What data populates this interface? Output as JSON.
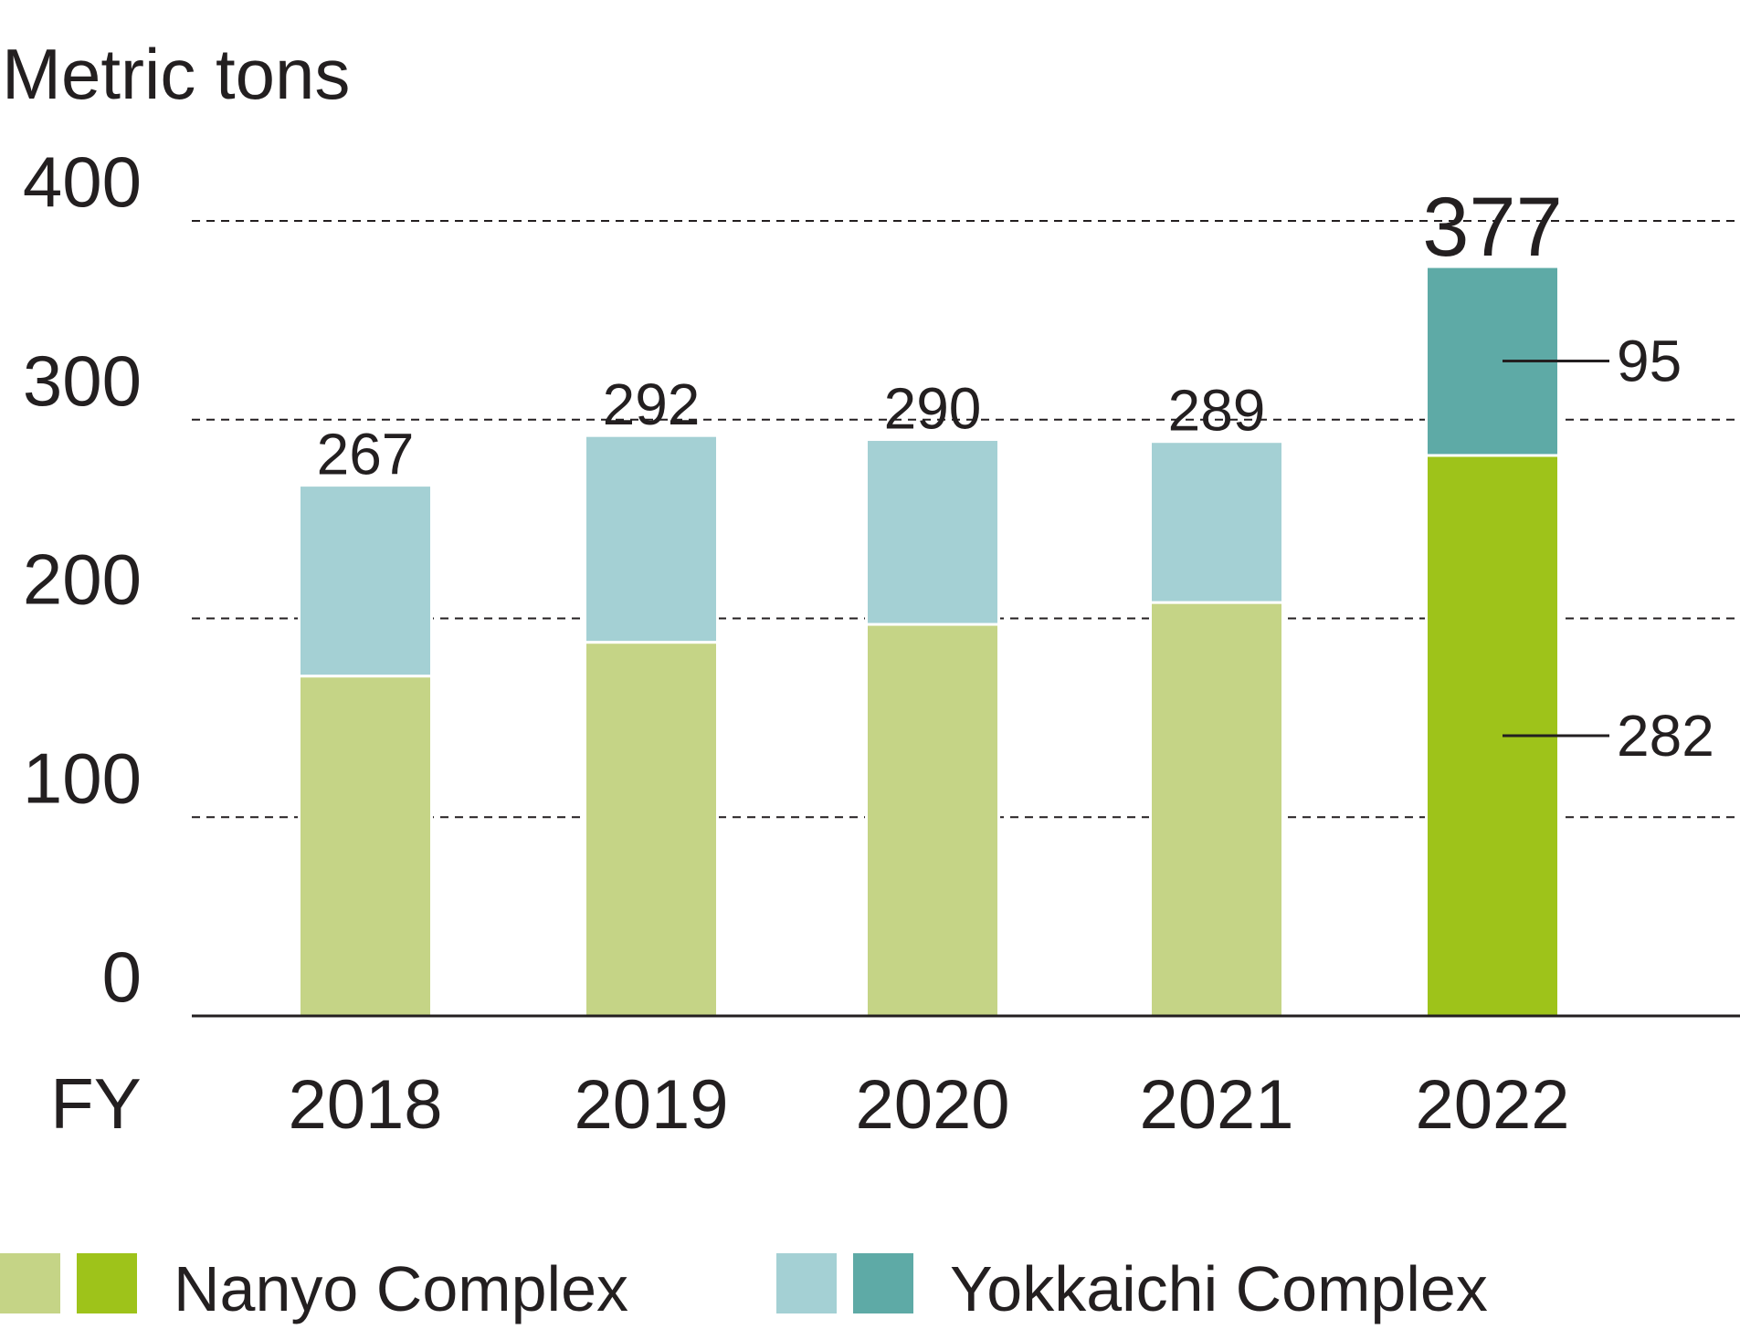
{
  "chart_data": {
    "type": "bar",
    "stacked": true,
    "ylabel": "Metric tons",
    "xlabel": "FY",
    "ylim": [
      0,
      400
    ],
    "yticks": [
      0,
      100,
      200,
      300,
      400
    ],
    "grid": true,
    "categories": [
      "2018",
      "2019",
      "2020",
      "2021",
      "2022"
    ],
    "totals": [
      267,
      292,
      290,
      289,
      377
    ],
    "series": [
      {
        "name": "Nanyo Complex",
        "values": [
          171,
          188,
          197,
          208,
          282
        ],
        "colors": [
          "#c5d486",
          "#c5d486",
          "#c5d486",
          "#c5d486",
          "#9ec31a"
        ]
      },
      {
        "name": "Yokkaichi Complex",
        "values": [
          96,
          104,
          93,
          81,
          95
        ],
        "colors": [
          "#a4d0d4",
          "#a4d0d4",
          "#a4d0d4",
          "#a4d0d4",
          "#5eaaa6"
        ]
      }
    ],
    "callouts": [
      {
        "category": "2022",
        "series": "Yokkaichi Complex",
        "text": "95"
      },
      {
        "category": "2022",
        "series": "Nanyo Complex",
        "text": "282"
      }
    ],
    "legend": {
      "placement": "bottom",
      "items": [
        {
          "label": "Nanyo Complex",
          "swatches": [
            "#c5d486",
            "#9ec31a"
          ]
        },
        {
          "label": "Yokkaichi Complex",
          "swatches": [
            "#a4d0d4",
            "#5eaaa6"
          ]
        }
      ]
    }
  }
}
